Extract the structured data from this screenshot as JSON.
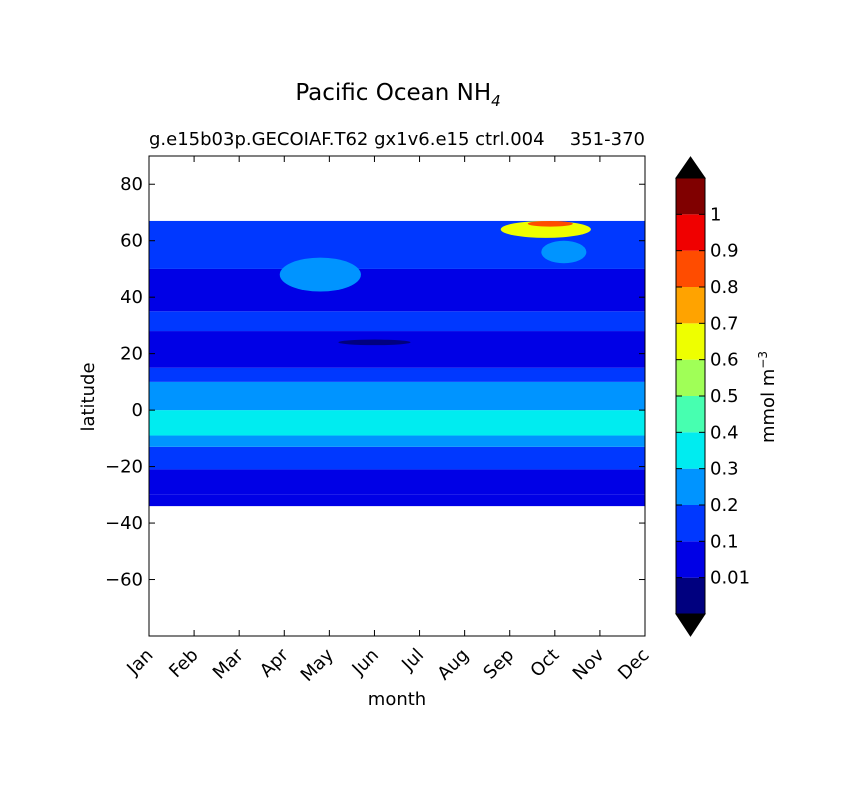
{
  "chart_data": {
    "type": "heatmap",
    "title": "Pacific Ocean NH",
    "title_subscript": "4",
    "subtitle_left": "g.e15b03p.GECOIAF.T62 gx1v6.e15 ctrl.004",
    "subtitle_right": "351-370",
    "xlabel": "month",
    "ylabel": "latitude",
    "x_ticks": [
      "Jan",
      "Feb",
      "Mar",
      "Apr",
      "May",
      "Jun",
      "Jul",
      "Aug",
      "Sep",
      "Oct",
      "Nov",
      "Dec"
    ],
    "xlim": [
      0,
      11
    ],
    "ylim": [
      -80,
      90
    ],
    "y_ticks": [
      80,
      60,
      40,
      20,
      0,
      -20,
      -40,
      -60
    ],
    "y_tick_labels": [
      "80",
      "60",
      "40",
      "20",
      "0",
      "−20",
      "−40",
      "−60"
    ],
    "data_lat_range": [
      -34,
      67
    ],
    "grid": false,
    "colorbar": {
      "label": "mmol m",
      "label_superscript": "−3",
      "levels": [
        0,
        0.01,
        0.1,
        0.2,
        0.3,
        0.4,
        0.5,
        0.6,
        0.7,
        0.8,
        0.9,
        1,
        1.1
      ],
      "tick_labels": [
        "0.01",
        "0.1",
        "0.2",
        "0.3",
        "0.4",
        "0.5",
        "0.6",
        "0.7",
        "0.8",
        "0.9",
        "1"
      ],
      "tick_values": [
        0.01,
        0.1,
        0.2,
        0.3,
        0.4,
        0.5,
        0.6,
        0.7,
        0.8,
        0.9,
        1
      ],
      "colors": [
        "#00007f",
        "#0000e6",
        "#0038ff",
        "#0094ff",
        "#00ecf0",
        "#47ffb0",
        "#a0ff57",
        "#eeff00",
        "#ffa300",
        "#ff4c00",
        "#f00000",
        "#800000"
      ],
      "extend": "both",
      "under_color": "#000000",
      "over_color": "#000000"
    },
    "bands": [
      {
        "lat_range": [
          -34,
          -30
        ],
        "value": 0.05
      },
      {
        "lat_range": [
          -30,
          -21
        ],
        "value": 0.05
      },
      {
        "lat_range": [
          -21,
          -13
        ],
        "value": 0.15
      },
      {
        "lat_range": [
          -13,
          -9
        ],
        "value": 0.25
      },
      {
        "lat_range": [
          -9,
          0
        ],
        "value": 0.35
      },
      {
        "lat_range": [
          0,
          10
        ],
        "value": 0.25
      },
      {
        "lat_range": [
          10,
          15
        ],
        "value": 0.15
      },
      {
        "lat_range": [
          15,
          28
        ],
        "value": 0.05
      },
      {
        "lat_range": [
          28,
          35
        ],
        "value": 0.15
      },
      {
        "lat_range": [
          35,
          50
        ],
        "value": 0.05
      },
      {
        "lat_range": [
          50,
          67
        ],
        "value": 0.15
      }
    ],
    "features": [
      {
        "kind": "blob",
        "month": 3.8,
        "lat": 48,
        "value": 0.25,
        "lat_radius": 6,
        "month_radius": 0.9
      },
      {
        "kind": "blob",
        "month": 5.0,
        "lat": 24,
        "value": 0.005,
        "lat_radius": 1,
        "month_radius": 0.8
      },
      {
        "kind": "blob",
        "month": 9.2,
        "lat": 56,
        "value": 0.25,
        "lat_radius": 4,
        "month_radius": 0.5
      },
      {
        "kind": "blob",
        "month": 8.8,
        "lat": 64,
        "value": 0.6,
        "lat_radius": 3,
        "month_radius": 1.0
      },
      {
        "kind": "blob",
        "month": 8.9,
        "lat": 66,
        "value": 0.8,
        "lat_radius": 1,
        "month_radius": 0.5
      }
    ]
  }
}
